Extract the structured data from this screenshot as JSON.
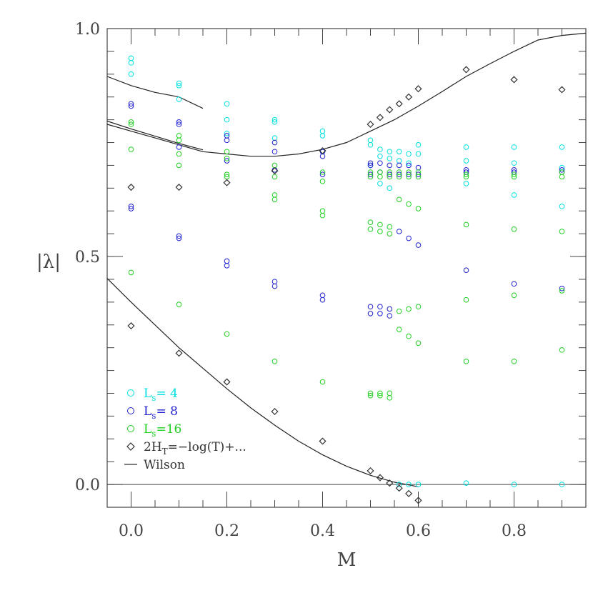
{
  "chart_data": {
    "type": "scatter",
    "xlabel": "M",
    "ylabel": "|λ|",
    "xlim": [
      -0.05,
      0.95
    ],
    "ylim": [
      -0.05,
      1.0
    ],
    "x_ticks": [
      "0.0",
      "0.2",
      "0.4",
      "0.6",
      "0.8"
    ],
    "y_ticks": [
      "0.0",
      "0.5",
      "1.0"
    ],
    "grid": false,
    "legend_position": "bottom-left",
    "legend": [
      {
        "key": "ls4",
        "marker": "circle",
        "color": "#00e0e0",
        "prefix": "L",
        "sub": "s",
        "suffix": "=  4"
      },
      {
        "key": "ls8",
        "marker": "circle",
        "color": "#2020d0",
        "prefix": "L",
        "sub": "s",
        "suffix": "=  8"
      },
      {
        "key": "ls16",
        "marker": "circle",
        "color": "#20d020",
        "prefix": "L",
        "sub": "s",
        "suffix": "=16"
      },
      {
        "key": "ht",
        "marker": "diamond",
        "color": "#333333",
        "prefix": "2H",
        "sub": "T",
        "suffix": "=−log(T)+..."
      },
      {
        "key": "wilson",
        "marker": "line",
        "color": "#333333",
        "prefix": "Wilson",
        "sub": "",
        "suffix": ""
      }
    ],
    "series": [
      {
        "key": "ls4",
        "marker": "circle",
        "color": "#00e0e0",
        "points": [
          [
            0.0,
            0.935
          ],
          [
            0.0,
            0.925
          ],
          [
            0.0,
            0.9
          ],
          [
            0.1,
            0.88
          ],
          [
            0.1,
            0.875
          ],
          [
            0.1,
            0.845
          ],
          [
            0.2,
            0.835
          ],
          [
            0.2,
            0.8
          ],
          [
            0.2,
            0.77
          ],
          [
            0.3,
            0.8
          ],
          [
            0.3,
            0.795
          ],
          [
            0.3,
            0.76
          ],
          [
            0.4,
            0.775
          ],
          [
            0.4,
            0.765
          ],
          [
            0.4,
            0.73
          ],
          [
            0.5,
            0.755
          ],
          [
            0.5,
            0.745
          ],
          [
            0.5,
            0.7
          ],
          [
            0.52,
            0.735
          ],
          [
            0.52,
            0.72
          ],
          [
            0.52,
            0.66
          ],
          [
            0.54,
            0.73
          ],
          [
            0.54,
            0.715
          ],
          [
            0.54,
            0.65
          ],
          [
            0.56,
            0.73
          ],
          [
            0.56,
            0.71
          ],
          [
            0.56,
            0.0
          ],
          [
            0.58,
            0.725
          ],
          [
            0.58,
            0.705
          ],
          [
            0.58,
            0.0
          ],
          [
            0.6,
            0.745
          ],
          [
            0.6,
            0.725
          ],
          [
            0.6,
            0.0
          ],
          [
            0.7,
            0.74
          ],
          [
            0.7,
            0.71
          ],
          [
            0.7,
            0.66
          ],
          [
            0.7,
            0.003
          ],
          [
            0.8,
            0.74
          ],
          [
            0.8,
            0.705
          ],
          [
            0.8,
            0.635
          ],
          [
            0.8,
            0.0
          ],
          [
            0.9,
            0.74
          ],
          [
            0.9,
            0.695
          ],
          [
            0.9,
            0.61
          ],
          [
            0.9,
            0.0
          ]
        ]
      },
      {
        "key": "ls8",
        "marker": "circle",
        "color": "#2020d0",
        "points": [
          [
            0.0,
            0.835
          ],
          [
            0.0,
            0.83
          ],
          [
            0.0,
            0.61
          ],
          [
            0.0,
            0.605
          ],
          [
            0.1,
            0.795
          ],
          [
            0.1,
            0.79
          ],
          [
            0.1,
            0.74
          ],
          [
            0.1,
            0.545
          ],
          [
            0.1,
            0.54
          ],
          [
            0.2,
            0.765
          ],
          [
            0.2,
            0.755
          ],
          [
            0.2,
            0.71
          ],
          [
            0.2,
            0.49
          ],
          [
            0.2,
            0.48
          ],
          [
            0.3,
            0.75
          ],
          [
            0.3,
            0.73
          ],
          [
            0.3,
            0.69
          ],
          [
            0.3,
            0.445
          ],
          [
            0.3,
            0.435
          ],
          [
            0.4,
            0.73
          ],
          [
            0.4,
            0.72
          ],
          [
            0.4,
            0.68
          ],
          [
            0.4,
            0.415
          ],
          [
            0.4,
            0.405
          ],
          [
            0.5,
            0.705
          ],
          [
            0.5,
            0.7
          ],
          [
            0.5,
            0.68
          ],
          [
            0.5,
            0.39
          ],
          [
            0.5,
            0.375
          ],
          [
            0.52,
            0.705
          ],
          [
            0.52,
            0.685
          ],
          [
            0.52,
            0.39
          ],
          [
            0.52,
            0.375
          ],
          [
            0.54,
            0.7
          ],
          [
            0.54,
            0.68
          ],
          [
            0.54,
            0.385
          ],
          [
            0.54,
            0.37
          ],
          [
            0.56,
            0.7
          ],
          [
            0.56,
            0.68
          ],
          [
            0.56,
            0.555
          ],
          [
            0.58,
            0.7
          ],
          [
            0.58,
            0.68
          ],
          [
            0.58,
            0.54
          ],
          [
            0.6,
            0.695
          ],
          [
            0.6,
            0.68
          ],
          [
            0.6,
            0.525
          ],
          [
            0.7,
            0.69
          ],
          [
            0.7,
            0.685
          ],
          [
            0.7,
            0.47
          ],
          [
            0.8,
            0.69
          ],
          [
            0.8,
            0.685
          ],
          [
            0.8,
            0.44
          ],
          [
            0.9,
            0.69
          ],
          [
            0.9,
            0.685
          ],
          [
            0.9,
            0.43
          ]
        ]
      },
      {
        "key": "ls16",
        "marker": "circle",
        "color": "#20d020",
        "points": [
          [
            0.0,
            0.795
          ],
          [
            0.0,
            0.79
          ],
          [
            0.0,
            0.735
          ],
          [
            0.0,
            0.465
          ],
          [
            0.1,
            0.765
          ],
          [
            0.1,
            0.755
          ],
          [
            0.1,
            0.725
          ],
          [
            0.1,
            0.7
          ],
          [
            0.1,
            0.395
          ],
          [
            0.2,
            0.73
          ],
          [
            0.2,
            0.715
          ],
          [
            0.2,
            0.68
          ],
          [
            0.2,
            0.675
          ],
          [
            0.2,
            0.33
          ],
          [
            0.3,
            0.7
          ],
          [
            0.3,
            0.675
          ],
          [
            0.3,
            0.635
          ],
          [
            0.3,
            0.625
          ],
          [
            0.3,
            0.27
          ],
          [
            0.4,
            0.685
          ],
          [
            0.4,
            0.665
          ],
          [
            0.4,
            0.6
          ],
          [
            0.4,
            0.59
          ],
          [
            0.4,
            0.225
          ],
          [
            0.5,
            0.685
          ],
          [
            0.5,
            0.675
          ],
          [
            0.5,
            0.575
          ],
          [
            0.5,
            0.56
          ],
          [
            0.5,
            0.2
          ],
          [
            0.5,
            0.195
          ],
          [
            0.52,
            0.685
          ],
          [
            0.52,
            0.675
          ],
          [
            0.52,
            0.57
          ],
          [
            0.52,
            0.555
          ],
          [
            0.52,
            0.2
          ],
          [
            0.52,
            0.195
          ],
          [
            0.54,
            0.685
          ],
          [
            0.54,
            0.675
          ],
          [
            0.54,
            0.565
          ],
          [
            0.54,
            0.55
          ],
          [
            0.54,
            0.2
          ],
          [
            0.54,
            0.19
          ],
          [
            0.56,
            0.685
          ],
          [
            0.56,
            0.675
          ],
          [
            0.56,
            0.625
          ],
          [
            0.56,
            0.38
          ],
          [
            0.56,
            0.34
          ],
          [
            0.58,
            0.685
          ],
          [
            0.58,
            0.675
          ],
          [
            0.58,
            0.615
          ],
          [
            0.58,
            0.385
          ],
          [
            0.58,
            0.325
          ],
          [
            0.6,
            0.685
          ],
          [
            0.6,
            0.675
          ],
          [
            0.6,
            0.605
          ],
          [
            0.6,
            0.39
          ],
          [
            0.6,
            0.31
          ],
          [
            0.7,
            0.68
          ],
          [
            0.7,
            0.675
          ],
          [
            0.7,
            0.57
          ],
          [
            0.7,
            0.405
          ],
          [
            0.7,
            0.27
          ],
          [
            0.8,
            0.68
          ],
          [
            0.8,
            0.675
          ],
          [
            0.8,
            0.56
          ],
          [
            0.8,
            0.415
          ],
          [
            0.8,
            0.27
          ],
          [
            0.9,
            0.685
          ],
          [
            0.9,
            0.675
          ],
          [
            0.9,
            0.555
          ],
          [
            0.9,
            0.425
          ],
          [
            0.9,
            0.295
          ]
        ]
      },
      {
        "key": "ht",
        "marker": "diamond",
        "color": "#333333",
        "points": [
          [
            0.0,
            0.652
          ],
          [
            0.0,
            0.348
          ],
          [
            0.1,
            0.652
          ],
          [
            0.1,
            0.288
          ],
          [
            0.2,
            0.662
          ],
          [
            0.2,
            0.225
          ],
          [
            0.3,
            0.688
          ],
          [
            0.3,
            0.16
          ],
          [
            0.4,
            0.732
          ],
          [
            0.4,
            0.095
          ],
          [
            0.5,
            0.79
          ],
          [
            0.5,
            0.03
          ],
          [
            0.52,
            0.805
          ],
          [
            0.52,
            0.015
          ],
          [
            0.54,
            0.822
          ],
          [
            0.54,
            0.003
          ],
          [
            0.56,
            0.835
          ],
          [
            0.56,
            -0.008
          ],
          [
            0.58,
            0.85
          ],
          [
            0.58,
            -0.02
          ],
          [
            0.6,
            0.868
          ],
          [
            0.6,
            -0.035
          ],
          [
            0.7,
            0.91
          ],
          [
            0.8,
            0.888
          ],
          [
            0.9,
            0.866
          ]
        ]
      }
    ],
    "lines": [
      {
        "key": "wilson-upper",
        "color": "#222222",
        "points": [
          [
            -0.05,
            0.895
          ],
          [
            0.0,
            0.875
          ],
          [
            0.05,
            0.86
          ],
          [
            0.1,
            0.85
          ],
          [
            0.15,
            0.825
          ]
        ]
      },
      {
        "key": "wilson-parabola",
        "color": "#222222",
        "points": [
          [
            -0.05,
            0.79
          ],
          [
            0.0,
            0.775
          ],
          [
            0.05,
            0.76
          ],
          [
            0.1,
            0.745
          ],
          [
            0.15,
            0.73
          ],
          [
            0.2,
            0.725
          ],
          [
            0.25,
            0.72
          ],
          [
            0.3,
            0.72
          ],
          [
            0.35,
            0.725
          ],
          [
            0.4,
            0.735
          ],
          [
            0.45,
            0.75
          ],
          [
            0.5,
            0.775
          ],
          [
            0.55,
            0.8
          ],
          [
            0.6,
            0.83
          ],
          [
            0.65,
            0.862
          ],
          [
            0.7,
            0.895
          ],
          [
            0.75,
            0.923
          ],
          [
            0.8,
            0.95
          ],
          [
            0.85,
            0.975
          ],
          [
            0.9,
            0.985
          ],
          [
            0.95,
            0.99
          ]
        ]
      },
      {
        "key": "wilson-parabola-2",
        "color": "#222222",
        "points": [
          [
            -0.05,
            0.797
          ],
          [
            0.0,
            0.78
          ],
          [
            0.05,
            0.764
          ],
          [
            0.1,
            0.748
          ],
          [
            0.15,
            0.734
          ]
        ]
      },
      {
        "key": "wilson-lower",
        "color": "#222222",
        "points": [
          [
            -0.05,
            0.452
          ],
          [
            0.0,
            0.4
          ],
          [
            0.05,
            0.35
          ],
          [
            0.1,
            0.3
          ],
          [
            0.15,
            0.255
          ],
          [
            0.2,
            0.21
          ],
          [
            0.25,
            0.168
          ],
          [
            0.3,
            0.13
          ],
          [
            0.35,
            0.095
          ],
          [
            0.4,
            0.065
          ],
          [
            0.45,
            0.04
          ],
          [
            0.5,
            0.02
          ],
          [
            0.55,
            0.005
          ],
          [
            0.6,
            -0.005
          ]
        ]
      }
    ]
  }
}
